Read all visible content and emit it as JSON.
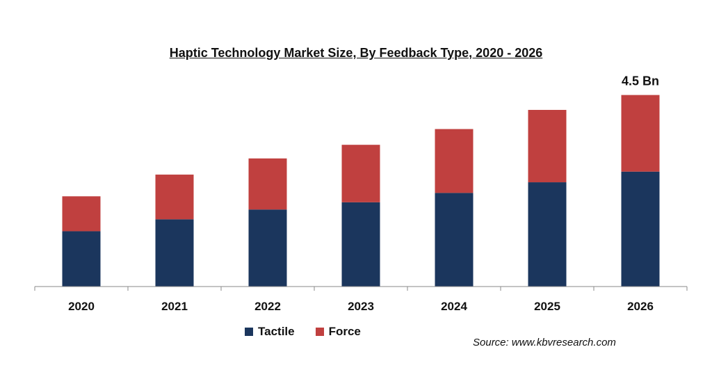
{
  "chart_data": {
    "type": "bar",
    "stacked": true,
    "title": "Haptic Technology Market Size, By Feedback Type, 2020 - 2026",
    "categories": [
      "2020",
      "2021",
      "2022",
      "2023",
      "2024",
      "2025",
      "2026"
    ],
    "series": [
      {
        "name": "Tactile",
        "color": "#1b365d",
        "values": [
          1.3,
          1.58,
          1.81,
          1.98,
          2.2,
          2.45,
          2.7
        ]
      },
      {
        "name": "Force",
        "color": "#c0403f",
        "values": [
          0.82,
          1.05,
          1.2,
          1.35,
          1.5,
          1.7,
          1.8
        ]
      }
    ],
    "data_labels": [
      {
        "category": "2026",
        "text": "4.5 Bn"
      }
    ],
    "ylim": [
      0,
      4.5
    ],
    "grid": false,
    "legend_position": "bottom",
    "source": "Source: www.kbvresearch.com"
  }
}
